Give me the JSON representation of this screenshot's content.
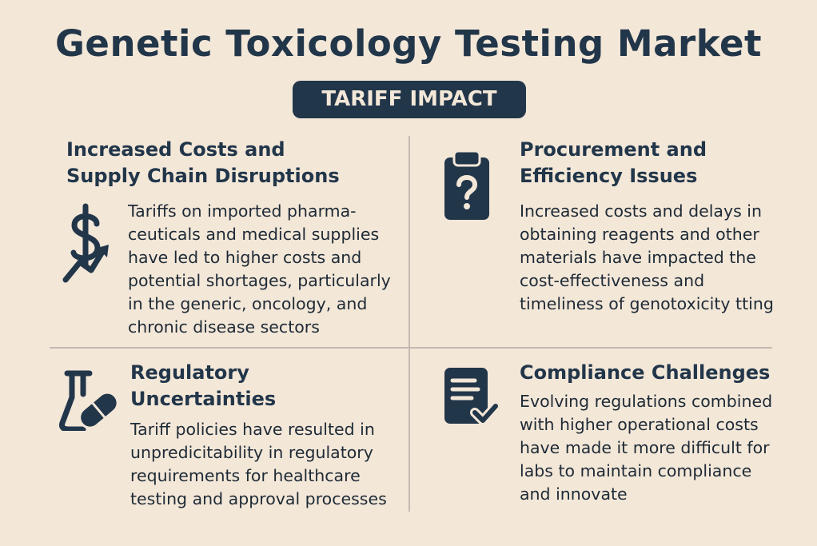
{
  "title": "Genetic Toxicology Testing Market",
  "badge": "TARIFF IMPACT",
  "colors": {
    "background": "#f3e7d8",
    "primary": "#22364a"
  },
  "sections": [
    {
      "icon": "dollar-trend-up-icon",
      "heading": [
        "Increased Costs and",
        "Supply Chain Disruptions"
      ],
      "body": [
        "Tariffs on imported pharma-",
        "ceuticals and medical supplies",
        "have led to higher costs and",
        "potential shortages, particularly",
        "in the generic, oncology, and",
        "chronic disease sectors"
      ]
    },
    {
      "icon": "clipboard-question-icon",
      "heading": [
        "Procurement and",
        "Efficiency Issues"
      ],
      "body": [
        "Increased costs and delays in",
        "obtaining reagents and other",
        "materials have impacted the",
        "cost-effectiveness and",
        "timeliness of genotoxicity tting"
      ]
    },
    {
      "icon": "flask-pill-icon",
      "heading": [
        "Regulatory",
        "Uncertainties"
      ],
      "body": [
        "Tariff policies have resulted in",
        "unpredicitability in regulatory",
        "requirements for healthcare",
        "testing and approval processes"
      ]
    },
    {
      "icon": "document-check-icon",
      "heading": [
        "Compliance Challenges"
      ],
      "body": [
        "Evolving regulations combined",
        "with higher operational costs",
        "have made it more difficult for",
        "labs to maintain compliance",
        "and innovate"
      ]
    }
  ]
}
